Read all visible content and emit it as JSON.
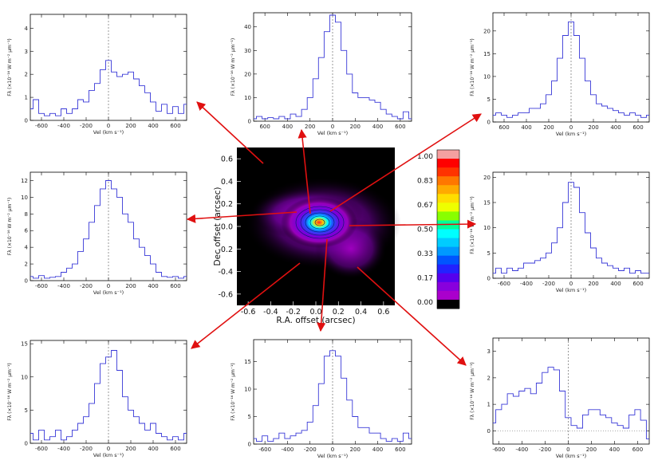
{
  "arrow_color": "#e01010",
  "spectrum_color": "#3a3ad8",
  "chart_data": {
    "type": "composite",
    "map": {
      "type": "heatmap",
      "xlabel": "R.A. offset (arcsec)",
      "ylabel": "Dec offset (arcsec)",
      "xlim": [
        -0.7,
        0.7
      ],
      "ylim": [
        -0.7,
        0.7
      ],
      "xticks": [
        "-0.6",
        "-0.4",
        "-0.2",
        "0.0",
        "0.2",
        "0.4",
        "0.6"
      ],
      "yticks": [
        "0.6",
        "0.4",
        "0.2",
        "0.0",
        "-0.2",
        "-0.4",
        "-0.6"
      ],
      "colorbar_ticks": [
        "1.00",
        "0.83",
        "0.67",
        "0.50",
        "0.33",
        "0.17",
        "0.00"
      ],
      "colorbar_colors": [
        "#f4a0a0",
        "#ff0000",
        "#ff3300",
        "#ff7700",
        "#ffaa00",
        "#ffdd00",
        "#eeff00",
        "#88ff00",
        "#00ff99",
        "#00ffff",
        "#00ccff",
        "#0099ff",
        "#0055ff",
        "#2222ff",
        "#5500ee",
        "#8800dd",
        "#aa00cc",
        "#000000"
      ]
    },
    "spectra": [
      {
        "name": "top-left",
        "xlabel": "Vel (km s⁻¹)",
        "ylabel": "Fλ (×10⁻¹⁶ W m⁻² μm⁻¹)",
        "xlim": [
          -700,
          700
        ],
        "ylim": [
          0,
          4.6
        ],
        "xticks": [
          "-600",
          "-400",
          "-200",
          "0",
          "200",
          "400",
          "600"
        ],
        "yticks": [
          "0",
          "1",
          "2",
          "3",
          "4"
        ],
        "x": [
          -700,
          -650,
          -600,
          -550,
          -500,
          -450,
          -400,
          -350,
          -300,
          -250,
          -200,
          -150,
          -100,
          -50,
          0,
          50,
          100,
          150,
          200,
          250,
          300,
          350,
          400,
          450,
          500,
          550,
          600,
          650,
          700
        ],
        "y": [
          0.5,
          0.9,
          0.3,
          0.2,
          0.3,
          0.2,
          0.5,
          0.3,
          0.5,
          0.9,
          0.8,
          1.3,
          1.6,
          2.2,
          2.6,
          2.1,
          1.9,
          2.0,
          2.1,
          1.8,
          1.5,
          1.2,
          0.8,
          0.4,
          0.7,
          0.3,
          0.6,
          0.3,
          0.7
        ]
      },
      {
        "name": "top-center",
        "xlabel": "Vel (km s⁻¹)",
        "ylabel": "Fλ (×10⁻¹⁶ W m⁻² μm⁻¹)",
        "xlim": [
          -700,
          700
        ],
        "ylim": [
          0,
          46
        ],
        "xticks": [
          "600",
          "400",
          "200",
          "0",
          "200",
          "400",
          "600"
        ],
        "yticks": [
          "0",
          "10",
          "20",
          "30",
          "40"
        ],
        "x": [
          -700,
          -650,
          -600,
          -550,
          -500,
          -450,
          -400,
          -350,
          -300,
          -250,
          -200,
          -150,
          -100,
          -50,
          0,
          50,
          100,
          150,
          200,
          250,
          300,
          350,
          400,
          450,
          500,
          550,
          600,
          650,
          700
        ],
        "y": [
          1,
          2,
          1,
          1.5,
          1,
          2,
          1,
          3,
          2,
          5,
          10,
          18,
          27,
          38,
          45,
          42,
          30,
          20,
          12,
          10,
          10,
          9,
          8,
          5,
          3,
          2,
          1,
          4,
          1
        ]
      },
      {
        "name": "top-right",
        "xlabel": "Vel (km s⁻¹)",
        "ylabel": "Fλ (×10⁻¹⁶ W m⁻² μm⁻¹)",
        "xlim": [
          -700,
          700
        ],
        "ylim": [
          0,
          24
        ],
        "xticks": [
          "600",
          "400",
          "200",
          "0",
          "200",
          "400",
          "600"
        ],
        "yticks": [
          "0",
          "5",
          "10",
          "15",
          "20"
        ],
        "x": [
          -700,
          -650,
          -600,
          -550,
          -500,
          -450,
          -400,
          -350,
          -300,
          -250,
          -200,
          -150,
          -100,
          -50,
          0,
          50,
          100,
          150,
          200,
          250,
          300,
          350,
          400,
          450,
          500,
          550,
          600,
          650,
          700
        ],
        "y": [
          1.5,
          2,
          1.5,
          1,
          1.5,
          2,
          2,
          3,
          3,
          4,
          6,
          9,
          14,
          19,
          22,
          19,
          14,
          9,
          6,
          4,
          3.5,
          3,
          2.5,
          2,
          1.5,
          2,
          1.5,
          1,
          1.5
        ]
      },
      {
        "name": "mid-left",
        "xlabel": "Vel (km s⁻¹)",
        "ylabel": "Fλ (×10⁻¹⁶ W m⁻² μm⁻¹)",
        "xlim": [
          -700,
          700
        ],
        "ylim": [
          0,
          13
        ],
        "xticks": [
          "-600",
          "-400",
          "-200",
          "0",
          "200",
          "400",
          "600"
        ],
        "yticks": [
          "0",
          "2",
          "4",
          "6",
          "8",
          "10",
          "12"
        ],
        "x": [
          -700,
          -650,
          -600,
          -550,
          -500,
          -450,
          -400,
          -350,
          -300,
          -250,
          -200,
          -150,
          -100,
          -50,
          0,
          50,
          100,
          150,
          200,
          250,
          300,
          350,
          400,
          450,
          500,
          550,
          600,
          650,
          700
        ],
        "y": [
          0.5,
          0.3,
          0.6,
          0.3,
          0.4,
          0.5,
          1,
          1.5,
          2,
          3.5,
          5,
          7,
          9,
          11,
          12,
          11,
          10,
          8,
          7,
          5,
          4,
          3,
          2,
          1,
          0.5,
          0.4,
          0.5,
          0.3,
          0.5
        ]
      },
      {
        "name": "mid-right",
        "xlabel": "Vel (km s⁻¹)",
        "ylabel": "Fλ (×10⁻¹⁶ W m⁻² μm⁻¹)",
        "xlim": [
          -700,
          700
        ],
        "ylim": [
          0,
          21
        ],
        "xticks": [
          "-600",
          "-400",
          "-200",
          "0",
          "200",
          "400",
          "600"
        ],
        "yticks": [
          "0",
          "5",
          "10",
          "15",
          "20"
        ],
        "x": [
          -700,
          -650,
          -600,
          -550,
          -500,
          -450,
          -400,
          -350,
          -300,
          -250,
          -200,
          -150,
          -100,
          -50,
          0,
          50,
          100,
          150,
          200,
          250,
          300,
          350,
          400,
          450,
          500,
          550,
          600,
          650,
          700
        ],
        "y": [
          1,
          2,
          1,
          2,
          1.5,
          2,
          3,
          3,
          3.5,
          4,
          5,
          7,
          10,
          15,
          19,
          18,
          13,
          9,
          6,
          4,
          3,
          2.5,
          2,
          1.5,
          2,
          1,
          1.5,
          1,
          1
        ]
      },
      {
        "name": "bottom-left",
        "xlabel": "Vel (km s⁻¹)",
        "ylabel": "Fλ (×10⁻¹⁶ W m⁻² μm⁻¹)",
        "xlim": [
          -700,
          700
        ],
        "ylim": [
          0,
          15.5
        ],
        "xticks": [
          "-600",
          "-400",
          "-200",
          "0",
          "200",
          "400",
          "600"
        ],
        "yticks": [
          "0",
          "5",
          "10",
          "15"
        ],
        "x": [
          -700,
          -650,
          -600,
          -550,
          -500,
          -450,
          -400,
          -350,
          -300,
          -250,
          -200,
          -150,
          -100,
          -50,
          0,
          50,
          100,
          150,
          200,
          250,
          300,
          350,
          400,
          450,
          500,
          550,
          600,
          650,
          700
        ],
        "y": [
          1.5,
          0.5,
          2,
          0.5,
          1,
          2,
          0.5,
          1,
          2,
          3,
          4,
          6,
          9,
          12,
          13,
          14,
          11,
          7,
          5,
          4,
          3,
          2,
          3,
          1.5,
          1,
          0.5,
          1,
          0.5,
          1.5
        ]
      },
      {
        "name": "bottom-center",
        "xlabel": "Vel (km s⁻¹)",
        "ylabel": "Fλ (×10⁻¹⁶ W m⁻² μm⁻¹)",
        "xlim": [
          -700,
          700
        ],
        "ylim": [
          0,
          19
        ],
        "xticks": [
          "-600",
          "-400",
          "-200",
          "0",
          "200",
          "400",
          "600"
        ],
        "yticks": [
          "0",
          "5",
          "10",
          "15"
        ],
        "x": [
          -700,
          -650,
          -600,
          -550,
          -500,
          -450,
          -400,
          -350,
          -300,
          -250,
          -200,
          -150,
          -100,
          -50,
          0,
          50,
          100,
          150,
          200,
          250,
          300,
          350,
          400,
          450,
          500,
          550,
          600,
          650,
          700
        ],
        "y": [
          1,
          0.5,
          1.5,
          0.5,
          1,
          2,
          1,
          1.5,
          2,
          2.5,
          4,
          7,
          11,
          16,
          17,
          16,
          12,
          8,
          5,
          3,
          3,
          2,
          2,
          1,
          0.5,
          1,
          0.5,
          2,
          1
        ]
      },
      {
        "name": "bottom-right",
        "xlabel": "Vel (km s⁻¹)",
        "ylabel": "Fλ (×10⁻¹⁶ W m⁻² μm⁻¹)",
        "xlim": [
          -650,
          700
        ],
        "ylim": [
          -0.5,
          3.5
        ],
        "xticks": [
          "-600",
          "-400",
          "-200",
          "0",
          "200",
          "400",
          "600"
        ],
        "yticks": [
          "0",
          "1",
          "2",
          "3"
        ],
        "x": [
          -650,
          -600,
          -550,
          -500,
          -450,
          -400,
          -350,
          -300,
          -250,
          -200,
          -150,
          -100,
          -50,
          0,
          50,
          100,
          150,
          200,
          250,
          300,
          350,
          400,
          450,
          500,
          550,
          600,
          650,
          700
        ],
        "y": [
          0.3,
          0.8,
          1,
          1.4,
          1.3,
          1.5,
          1.6,
          1.4,
          1.8,
          2.2,
          2.4,
          2.3,
          1.5,
          0.5,
          0.2,
          0.1,
          0.6,
          0.8,
          0.8,
          0.6,
          0.5,
          0.3,
          0.2,
          0.1,
          0.6,
          0.8,
          0.4,
          -0.3
        ]
      }
    ]
  }
}
